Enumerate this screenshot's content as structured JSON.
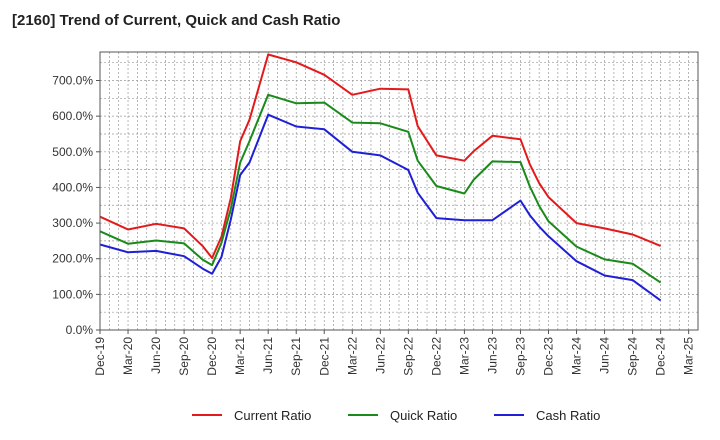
{
  "chart_data": {
    "type": "line",
    "title": "[2160]  Trend of Current, Quick and Cash Ratio",
    "xlabel": "",
    "ylabel": "",
    "ylim": [
      0,
      780
    ],
    "yticks": [
      0,
      100,
      200,
      300,
      400,
      500,
      600,
      700
    ],
    "ytick_labels": [
      "0.0%",
      "100.0%",
      "200.0%",
      "300.0%",
      "400.0%",
      "500.0%",
      "600.0%",
      "700.0%"
    ],
    "x_tick_labels": [
      "Dec-19",
      "Mar-20",
      "Jun-20",
      "Sep-20",
      "Dec-20",
      "Mar-21",
      "Jun-21",
      "Sep-21",
      "Dec-21",
      "Mar-22",
      "Jun-22",
      "Sep-22",
      "Dec-22",
      "Mar-23",
      "Jun-23",
      "Sep-23",
      "Dec-23",
      "Mar-24",
      "Jun-24",
      "Sep-24",
      "Dec-24",
      "Mar-25"
    ],
    "x_month_count": 64,
    "legend_position": "bottom",
    "grid": true,
    "series": [
      {
        "name": "Current Ratio",
        "color": "#e31a1c",
        "months": [
          0,
          3,
          6,
          9,
          11,
          12,
          13,
          14,
          15,
          16,
          18,
          21,
          24,
          27,
          30,
          33,
          34,
          36,
          39,
          40,
          42,
          45,
          46,
          47,
          48,
          51,
          54,
          57,
          60
        ],
        "values": [
          318,
          282,
          298,
          285,
          235,
          202,
          262,
          370,
          530,
          590,
          773,
          751,
          716,
          660,
          677,
          675,
          572,
          490,
          475,
          502,
          545,
          535,
          465,
          412,
          373,
          300,
          285,
          268,
          236
        ]
      },
      {
        "name": "Quick Ratio",
        "color": "#1a8a1a",
        "months": [
          0,
          3,
          6,
          9,
          11,
          12,
          13,
          14,
          15,
          16,
          18,
          21,
          24,
          27,
          30,
          33,
          34,
          36,
          39,
          40,
          42,
          45,
          46,
          47,
          48,
          51,
          54,
          57,
          60
        ],
        "values": [
          277,
          242,
          251,
          243,
          197,
          182,
          245,
          340,
          470,
          530,
          660,
          636,
          638,
          582,
          580,
          556,
          475,
          404,
          383,
          422,
          473,
          471,
          403,
          348,
          305,
          234,
          198,
          186,
          133
        ]
      },
      {
        "name": "Cash Ratio",
        "color": "#1f1fd6",
        "months": [
          0,
          3,
          6,
          9,
          11,
          12,
          13,
          14,
          15,
          16,
          18,
          21,
          24,
          27,
          30,
          33,
          34,
          36,
          39,
          40,
          42,
          45,
          46,
          47,
          48,
          51,
          54,
          57,
          60
        ],
        "values": [
          240,
          218,
          222,
          207,
          172,
          158,
          205,
          310,
          435,
          470,
          604,
          571,
          563,
          500,
          490,
          449,
          385,
          314,
          308,
          308,
          308,
          363,
          322,
          290,
          263,
          193,
          153,
          140,
          83
        ]
      }
    ]
  }
}
